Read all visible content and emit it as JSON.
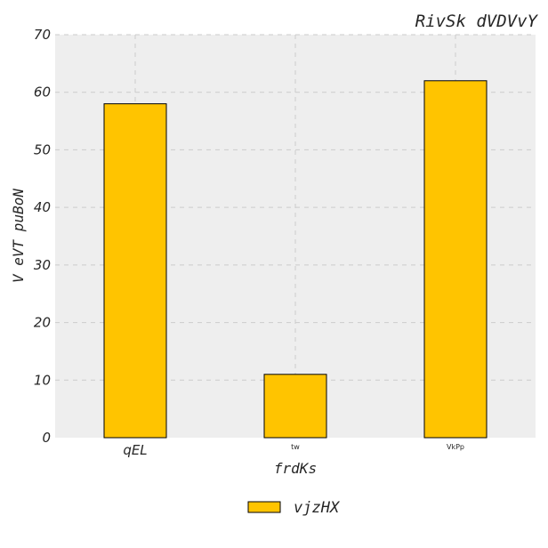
{
  "chart_data": {
    "type": "bar",
    "title": "RivSk dVDVvY",
    "xlabel": "frdKs",
    "ylabel": "V eVT puBoN",
    "categories": [
      "qEL",
      "tw",
      "VkPp"
    ],
    "series": [
      {
        "name": "vjzHX",
        "values": [
          58,
          11,
          62
        ]
      }
    ],
    "ylim": [
      0,
      70
    ],
    "yticks": [
      "0",
      "10",
      "20",
      "30",
      "40",
      "50",
      "60",
      "70"
    ],
    "grid": true,
    "legend_position": "bottom-center",
    "colors": {
      "bar": "#ffc400",
      "bar_edge": "#000000",
      "plot_bg": "#eeeeee",
      "grid": "#cccccc"
    }
  }
}
